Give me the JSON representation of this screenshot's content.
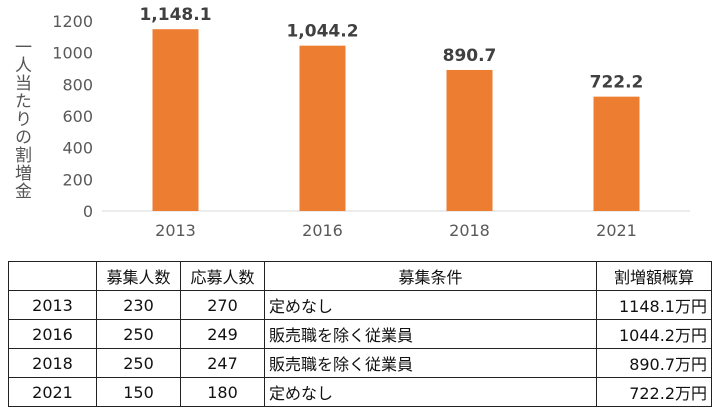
{
  "chart_data": {
    "type": "bar",
    "categories": [
      "2013",
      "2016",
      "2018",
      "2021"
    ],
    "values": [
      1148.1,
      1044.2,
      890.7,
      722.2
    ],
    "data_labels": [
      "1,148.1",
      "1,044.2",
      "890.7",
      "722.2"
    ],
    "ylabel": "一人当たりの割増金",
    "ylim": [
      0,
      1200
    ],
    "yticks": [
      0,
      200,
      400,
      600,
      800,
      1000,
      1200
    ],
    "grid": false,
    "bar_color": "#ED7D31",
    "label_color": "#404040"
  },
  "table": {
    "headers": [
      "",
      "募集人数",
      "応募人数",
      "募集条件",
      "割増額概算"
    ],
    "rows": [
      [
        "2013",
        "230",
        "270",
        "定めなし",
        "1148.1万円"
      ],
      [
        "2016",
        "250",
        "249",
        "販売職を除く従業員",
        "1044.2万円"
      ],
      [
        "2018",
        "250",
        "247",
        "販売職を除く従業員",
        "890.7万円"
      ],
      [
        "2021",
        "150",
        "180",
        "定めなし",
        "722.2万円"
      ]
    ]
  }
}
